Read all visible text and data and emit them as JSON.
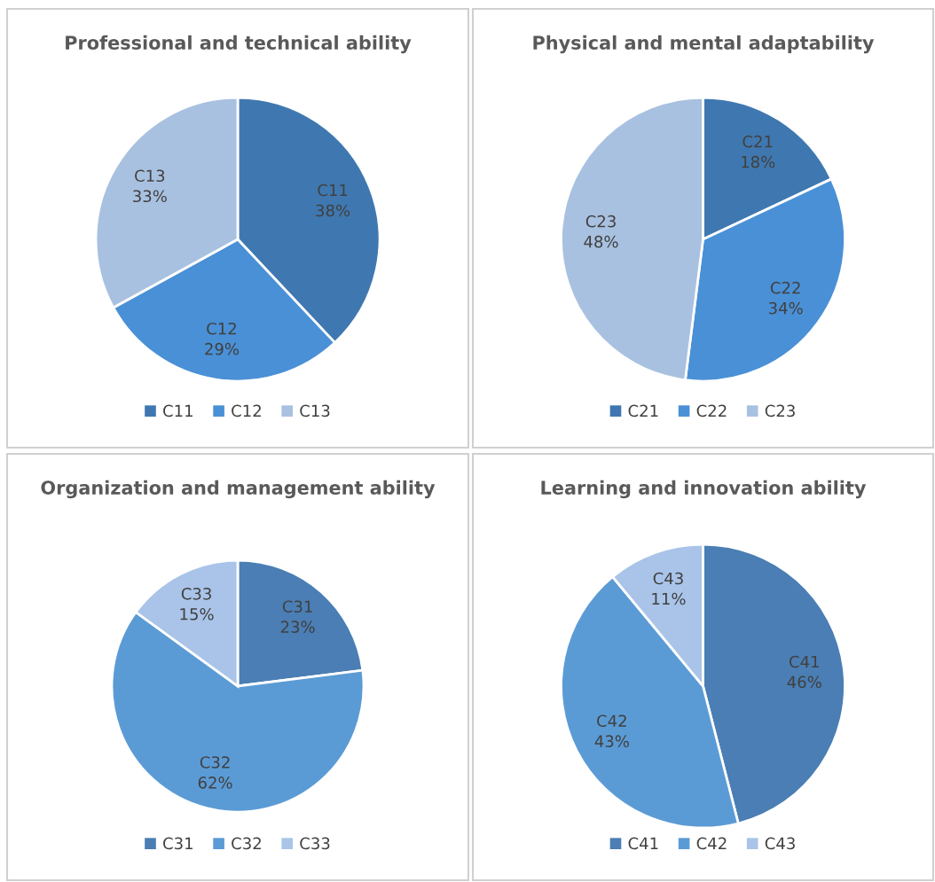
{
  "chart_data": [
    {
      "type": "pie",
      "title": "Professional and technical ability",
      "categories": [
        "C11",
        "C12",
        "C13"
      ],
      "values": [
        38,
        29,
        33
      ],
      "value_labels": [
        "38%",
        "29%",
        "33%"
      ],
      "colors": [
        "#3f78b0",
        "#4a90d6",
        "#a9c1e0"
      ],
      "legend": "bottom"
    },
    {
      "type": "pie",
      "title": "Physical and mental adaptability",
      "categories": [
        "C21",
        "C22",
        "C23"
      ],
      "values": [
        18,
        34,
        48
      ],
      "value_labels": [
        "18%",
        "34%",
        "48%"
      ],
      "colors": [
        "#3f78b0",
        "#4a90d6",
        "#a9c1e0"
      ],
      "legend": "bottom"
    },
    {
      "type": "pie",
      "title": "Organization and management ability",
      "categories": [
        "C31",
        "C32",
        "C33"
      ],
      "values": [
        23,
        62,
        15
      ],
      "value_labels": [
        "23%",
        "62%",
        "15%"
      ],
      "colors": [
        "#4a7eb4",
        "#5b9bd5",
        "#a9c4e8"
      ],
      "legend": "bottom"
    },
    {
      "type": "pie",
      "title": "Learning and innovation ability",
      "categories": [
        "C41",
        "C42",
        "C43"
      ],
      "values": [
        46,
        43,
        11
      ],
      "value_labels": [
        "46%",
        "43%",
        "11%"
      ],
      "colors": [
        "#4a7eb4",
        "#5b9bd5",
        "#a9c4e8"
      ],
      "legend": "bottom"
    }
  ]
}
